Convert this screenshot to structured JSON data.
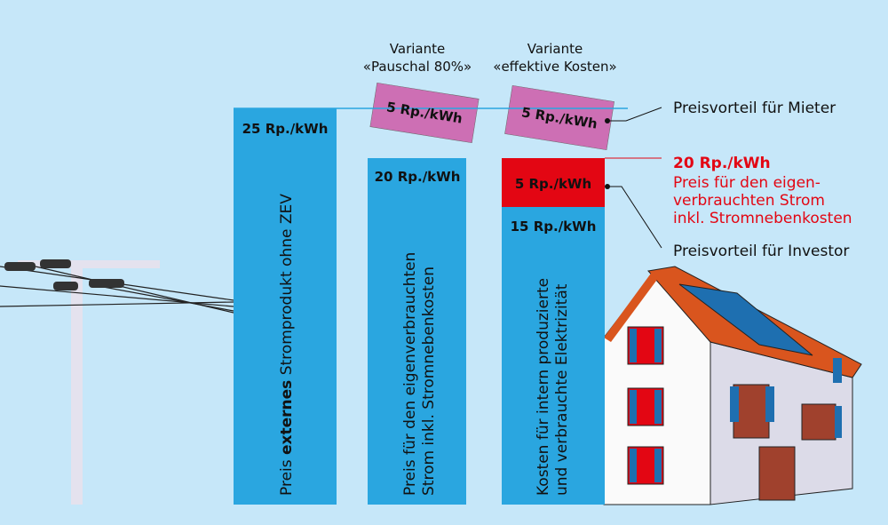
{
  "columns": [
    {
      "price": "25 Rp./kWh",
      "caption": [
        "Preis ",
        "externes",
        " Stromprodukt ohne ZEV"
      ]
    },
    {
      "heading": [
        "Variante",
        "«Pauschal 80%»"
      ],
      "top": "5 Rp./kWh",
      "price": "20 Rp./kWh",
      "caption": [
        "Preis für den eigenverbrauchten",
        "Strom inkl. Stromnebenkosten"
      ]
    },
    {
      "heading": [
        "Variante",
        "«effektive Kosten»"
      ],
      "top": "5 Rp./kWh",
      "middle": "5 Rp./kWh",
      "price": "15 Rp./kWh",
      "caption": [
        "Kosten für intern produzierte",
        "und verbrauchte Elektrizität"
      ]
    }
  ],
  "annotations": {
    "tenant": "Preisvorteil für Mieter",
    "price": "20 Rp./kWh",
    "price_note": [
      "Preis für den eigen-",
      "verbrauchten Strom",
      "inkl. Stromnebenkosten"
    ],
    "investor": "Preisvorteil für Investor"
  }
}
